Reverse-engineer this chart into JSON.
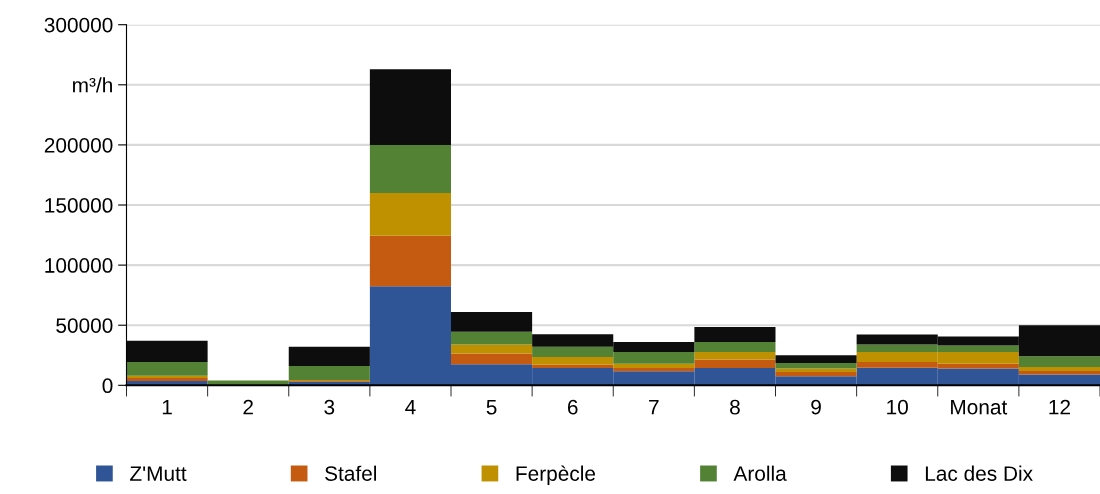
{
  "chart_data": {
    "type": "bar",
    "stacked": true,
    "categories": [
      "1",
      "2",
      "3",
      "4",
      "5",
      "6",
      "7",
      "8",
      "9",
      "10",
      "Monat",
      "12"
    ],
    "series": [
      {
        "name": "Z'Mutt",
        "color": "#2f5597",
        "values": [
          3500,
          null,
          3000,
          82500,
          17500,
          14500,
          11700,
          14400,
          7500,
          14700,
          13900,
          8900
        ]
      },
      {
        "name": "Stafel",
        "color": "#c55a11",
        "values": [
          2500,
          null,
          500,
          42000,
          9000,
          2700,
          2700,
          7000,
          3500,
          4700,
          4100,
          3000
        ]
      },
      {
        "name": "Ferpècle",
        "color": "#bf9000",
        "values": [
          2000,
          null,
          1000,
          35500,
          7500,
          6400,
          3600,
          6400,
          3000,
          8400,
          9700,
          3400
        ]
      },
      {
        "name": "Arolla",
        "color": "#548235",
        "values": [
          11500,
          4000,
          11500,
          40000,
          10500,
          8400,
          9800,
          8200,
          4600,
          6200,
          5500,
          8900
        ]
      },
      {
        "name": "Lac des Dix",
        "color": "#0d0d0d",
        "values": [
          17500,
          0,
          16000,
          63000,
          16500,
          10500,
          8200,
          12600,
          6400,
          8200,
          7500,
          25800
        ]
      }
    ],
    "ylim": [
      0,
      300000
    ],
    "yticks": [
      0,
      50000,
      100000,
      150000,
      200000,
      {
        "value": 250000,
        "label": "m³/h"
      },
      300000
    ],
    "grid": "y",
    "legend": "bottom"
  }
}
